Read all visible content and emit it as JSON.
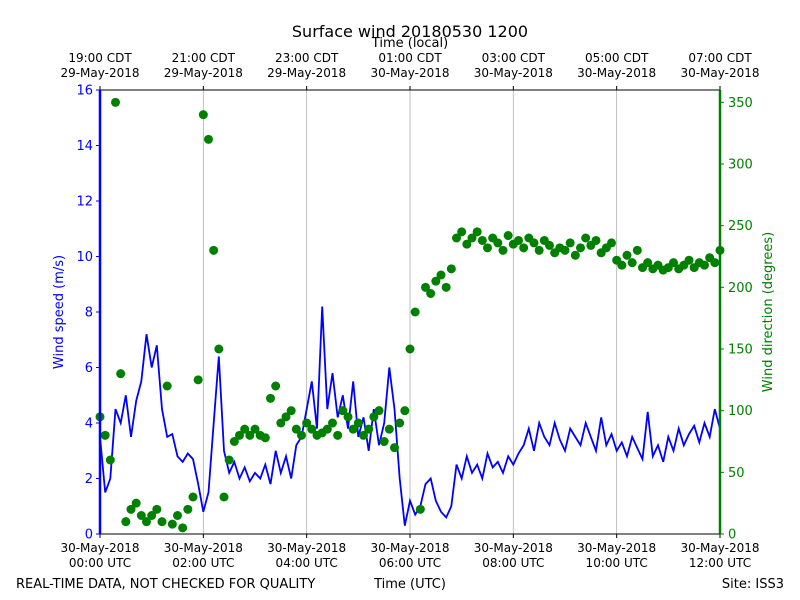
{
  "chart_data": {
    "type": "line",
    "title": "Surface wind 20180530 1200",
    "x_label": "Time (UTC)",
    "x2_label": "Time (local)",
    "y_label": "Wind speed (m/s)",
    "y2_label": "Wind direction (degrees)",
    "annotations": [
      "REAL-TIME DATA, NOT CHECKED FOR QUALITY",
      "Site: ISS3"
    ],
    "xlim": [
      0,
      12
    ],
    "xticks": [
      {
        "value": 0,
        "label": "30-May-2018\n00:00 UTC"
      },
      {
        "value": 2,
        "label": "30-May-2018\n02:00 UTC"
      },
      {
        "value": 4,
        "label": "30-May-2018\n04:00 UTC"
      },
      {
        "value": 6,
        "label": "30-May-2018\n06:00 UTC"
      },
      {
        "value": 8,
        "label": "30-May-2018\n08:00 UTC"
      },
      {
        "value": 10,
        "label": "30-May-2018\n10:00 UTC"
      },
      {
        "value": 12,
        "label": "30-May-2018\n12:00 UTC"
      }
    ],
    "x2ticks": [
      {
        "value": 0,
        "label": "19:00 CDT\n29-May-2018"
      },
      {
        "value": 2,
        "label": "21:00 CDT\n29-May-2018"
      },
      {
        "value": 4,
        "label": "23:00 CDT\n29-May-2018"
      },
      {
        "value": 6,
        "label": "01:00 CDT\n30-May-2018"
      },
      {
        "value": 8,
        "label": "03:00 CDT\n30-May-2018"
      },
      {
        "value": 10,
        "label": "05:00 CDT\n30-May-2018"
      },
      {
        "value": 12,
        "label": "07:00 CDT\n30-May-2018"
      }
    ],
    "ylim": [
      0,
      16
    ],
    "yticks": [
      0,
      2,
      4,
      6,
      8,
      10,
      12,
      14,
      16
    ],
    "y2lim": [
      0,
      360
    ],
    "y2ticks": [
      0,
      50,
      100,
      150,
      200,
      250,
      300,
      350
    ],
    "grid": "x",
    "y_color": "#0000ff",
    "y2_color": "#008000",
    "series": [
      {
        "type": "line",
        "color": "#0000ff",
        "axis": "y",
        "x": [
          0,
          0.1,
          0.2,
          0.3,
          0.4,
          0.5,
          0.6,
          0.7,
          0.8,
          0.9,
          1,
          1.1,
          1.2,
          1.3,
          1.4,
          1.5,
          1.6,
          1.7,
          1.8,
          1.9,
          2,
          2.1,
          2.2,
          2.3,
          2.4,
          2.5,
          2.6,
          2.7,
          2.8,
          2.9,
          3,
          3.1,
          3.2,
          3.3,
          3.4,
          3.5,
          3.6,
          3.7,
          3.8,
          3.9,
          4,
          4.1,
          4.2,
          4.3,
          4.4,
          4.5,
          4.6,
          4.7,
          4.8,
          4.9,
          5,
          5.1,
          5.2,
          5.3,
          5.4,
          5.5,
          5.6,
          5.7,
          5.8,
          5.9,
          6,
          6.1,
          6.2,
          6.3,
          6.4,
          6.5,
          6.6,
          6.7,
          6.8,
          6.9,
          7,
          7.1,
          7.2,
          7.3,
          7.4,
          7.5,
          7.6,
          7.7,
          7.8,
          7.9,
          8,
          8.1,
          8.2,
          8.3,
          8.4,
          8.5,
          8.6,
          8.7,
          8.8,
          8.9,
          9,
          9.1,
          9.2,
          9.3,
          9.4,
          9.5,
          9.6,
          9.7,
          9.8,
          9.9,
          10,
          10.1,
          10.2,
          10.3,
          10.4,
          10.5,
          10.6,
          10.7,
          10.8,
          10.9,
          11,
          11.1,
          11.2,
          11.3,
          11.4,
          11.5,
          11.6,
          11.7,
          11.8,
          11.9,
          12
        ],
        "values": [
          3.5,
          1.5,
          2.0,
          4.5,
          4.0,
          5.0,
          3.5,
          4.8,
          5.5,
          7.2,
          6.0,
          6.8,
          4.5,
          3.5,
          3.6,
          2.8,
          2.6,
          2.9,
          2.7,
          1.8,
          0.8,
          1.5,
          4.0,
          6.4,
          3.0,
          2.2,
          2.6,
          2.0,
          2.4,
          1.9,
          2.2,
          2.0,
          2.5,
          1.8,
          3.0,
          2.2,
          2.8,
          2.0,
          3.2,
          3.5,
          4.5,
          5.5,
          3.8,
          8.2,
          4.5,
          5.8,
          4.2,
          5.0,
          3.8,
          5.5,
          3.5,
          4.2,
          3.0,
          4.5,
          3.2,
          4.0,
          6.0,
          4.5,
          2.0,
          0.3,
          1.2,
          0.7,
          1.0,
          1.8,
          2.0,
          1.2,
          0.8,
          0.6,
          1.0,
          2.5,
          2.0,
          2.8,
          2.2,
          2.5,
          2.0,
          2.9,
          2.4,
          2.6,
          2.2,
          2.8,
          2.5,
          2.9,
          3.2,
          3.8,
          3.0,
          4.0,
          3.5,
          3.2,
          4.0,
          3.4,
          3.0,
          3.8,
          3.5,
          3.2,
          4.0,
          3.5,
          3.0,
          4.2,
          3.2,
          3.6,
          3.0,
          3.3,
          2.8,
          3.5,
          3.1,
          2.7,
          4.4,
          2.8,
          3.2,
          2.6,
          3.5,
          3.0,
          3.8,
          3.2,
          3.6,
          3.9,
          3.3,
          4.0,
          3.5,
          4.5,
          3.8
        ]
      },
      {
        "type": "scatter",
        "color": "#008000",
        "axis": "y2",
        "x": [
          0,
          0.1,
          0.2,
          0.3,
          0.4,
          0.5,
          0.6,
          0.7,
          0.8,
          0.9,
          1,
          1.1,
          1.2,
          1.3,
          1.4,
          1.5,
          1.6,
          1.7,
          1.8,
          1.9,
          2,
          2.1,
          2.2,
          2.3,
          2.4,
          2.5,
          2.6,
          2.7,
          2.8,
          2.9,
          3,
          3.1,
          3.2,
          3.3,
          3.4,
          3.5,
          3.6,
          3.7,
          3.8,
          3.9,
          4,
          4.1,
          4.2,
          4.3,
          4.4,
          4.5,
          4.6,
          4.7,
          4.8,
          4.9,
          5,
          5.1,
          5.2,
          5.3,
          5.4,
          5.5,
          5.6,
          5.7,
          5.8,
          5.9,
          6,
          6.1,
          6.2,
          6.3,
          6.4,
          6.5,
          6.6,
          6.7,
          6.8,
          6.9,
          7,
          7.1,
          7.2,
          7.3,
          7.4,
          7.5,
          7.6,
          7.7,
          7.8,
          7.9,
          8,
          8.1,
          8.2,
          8.3,
          8.4,
          8.5,
          8.6,
          8.7,
          8.8,
          8.9,
          9,
          9.1,
          9.2,
          9.3,
          9.4,
          9.5,
          9.6,
          9.7,
          9.8,
          9.9,
          10,
          10.1,
          10.2,
          10.3,
          10.4,
          10.5,
          10.6,
          10.7,
          10.8,
          10.9,
          11,
          11.1,
          11.2,
          11.3,
          11.4,
          11.5,
          11.6,
          11.7,
          11.8,
          11.9,
          12
        ],
        "values": [
          95,
          80,
          60,
          350,
          130,
          10,
          20,
          25,
          15,
          10,
          15,
          20,
          10,
          120,
          8,
          15,
          5,
          20,
          30,
          125,
          340,
          320,
          230,
          150,
          30,
          60,
          75,
          80,
          85,
          80,
          85,
          80,
          78,
          110,
          120,
          90,
          95,
          100,
          85,
          80,
          90,
          85,
          80,
          82,
          85,
          90,
          80,
          100,
          95,
          85,
          90,
          80,
          85,
          95,
          100,
          75,
          85,
          70,
          90,
          100,
          150,
          180,
          20,
          200,
          195,
          205,
          210,
          200,
          215,
          240,
          245,
          235,
          240,
          245,
          238,
          232,
          240,
          236,
          230,
          242,
          235,
          238,
          232,
          240,
          236,
          230,
          238,
          234,
          228,
          232,
          230,
          236,
          226,
          232,
          240,
          234,
          238,
          228,
          232,
          236,
          222,
          218,
          226,
          220,
          230,
          216,
          220,
          215,
          218,
          214,
          216,
          220,
          215,
          218,
          222,
          216,
          220,
          218,
          224,
          220,
          230
        ]
      }
    ]
  }
}
